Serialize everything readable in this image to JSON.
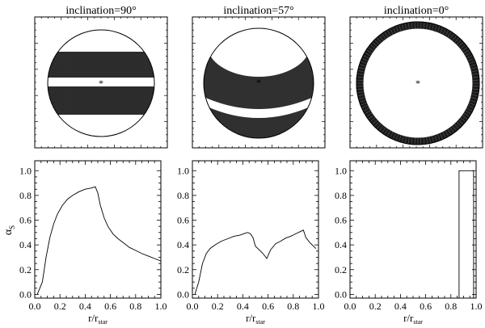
{
  "figure": {
    "panel_titles": [
      "inclination=90°",
      "inclination=57°",
      "inclination=0°"
    ],
    "star_marker": "*",
    "ylabel_main": "α",
    "ylabel_sub": "S",
    "xlabel_main": "r/r",
    "xlabel_sub": "star"
  },
  "disks": [
    {
      "inclination_deg": 90,
      "view": "edge-on",
      "title": "inclination=90°"
    },
    {
      "inclination_deg": 57,
      "view": "tilted",
      "title": "inclination=57°"
    },
    {
      "inclination_deg": 0,
      "view": "face-on",
      "title": "inclination=0°"
    }
  ],
  "chart_data": [
    {
      "type": "line",
      "title": "inclination=90°",
      "xlabel": "r/r_star",
      "ylabel": "α_S",
      "xlim": [
        0.0,
        1.0
      ],
      "ylim": [
        -0.03,
        1.08
      ],
      "xticks": [
        "0.0",
        "0.2",
        "0.4",
        "0.6",
        "0.8",
        "1.0"
      ],
      "yticks": [
        "0.0",
        "0.2",
        "0.4",
        "0.6",
        "0.8",
        "1.0"
      ],
      "x": [
        0.02,
        0.06,
        0.09,
        0.12,
        0.15,
        0.18,
        0.22,
        0.26,
        0.3,
        0.35,
        0.4,
        0.45,
        0.48,
        0.5,
        0.52,
        0.55,
        0.58,
        0.62,
        0.66,
        0.7,
        0.75,
        0.8,
        0.85,
        0.9,
        0.95,
        1.0
      ],
      "y": [
        0.0,
        0.1,
        0.3,
        0.46,
        0.57,
        0.65,
        0.72,
        0.77,
        0.8,
        0.83,
        0.85,
        0.86,
        0.87,
        0.82,
        0.72,
        0.62,
        0.55,
        0.49,
        0.45,
        0.42,
        0.38,
        0.355,
        0.33,
        0.31,
        0.29,
        0.27
      ]
    },
    {
      "type": "line",
      "title": "inclination=57°",
      "xlabel": "r/r_star",
      "ylabel": "α_S",
      "xlim": [
        0.0,
        1.0
      ],
      "ylim": [
        -0.03,
        1.08
      ],
      "xticks": [
        "0.0",
        "0.2",
        "0.4",
        "0.6",
        "0.8",
        "1.0"
      ],
      "yticks": [
        "0.0",
        "0.2",
        "0.4",
        "0.6",
        "0.8",
        "1.0"
      ],
      "x": [
        0.02,
        0.05,
        0.08,
        0.11,
        0.14,
        0.18,
        0.23,
        0.28,
        0.33,
        0.38,
        0.42,
        0.44,
        0.46,
        0.48,
        0.5,
        0.53,
        0.56,
        0.59,
        0.62,
        0.66,
        0.7,
        0.74,
        0.78,
        0.82,
        0.86,
        0.88,
        0.9,
        0.93,
        0.96,
        0.98
      ],
      "y": [
        0.0,
        0.1,
        0.25,
        0.33,
        0.37,
        0.4,
        0.43,
        0.45,
        0.47,
        0.48,
        0.495,
        0.5,
        0.49,
        0.46,
        0.39,
        0.36,
        0.33,
        0.29,
        0.36,
        0.41,
        0.43,
        0.455,
        0.47,
        0.49,
        0.51,
        0.52,
        0.46,
        0.42,
        0.39,
        0.37
      ]
    },
    {
      "type": "line",
      "title": "inclination=0°",
      "xlabel": "r/r_star",
      "ylabel": "α_S",
      "xlim": [
        0.0,
        1.0
      ],
      "ylim": [
        -0.03,
        1.08
      ],
      "xticks": [
        "0.0",
        "0.2",
        "0.4",
        "0.6",
        "0.8",
        "1.0"
      ],
      "yticks": [
        "0.0",
        "0.2",
        "0.4",
        "0.6",
        "0.8",
        "1.0"
      ],
      "x": [
        0.85,
        0.865,
        0.865,
        0.98,
        0.98,
        0.995
      ],
      "y": [
        -0.03,
        -0.03,
        1.0,
        1.0,
        -0.03,
        -0.03
      ]
    }
  ]
}
